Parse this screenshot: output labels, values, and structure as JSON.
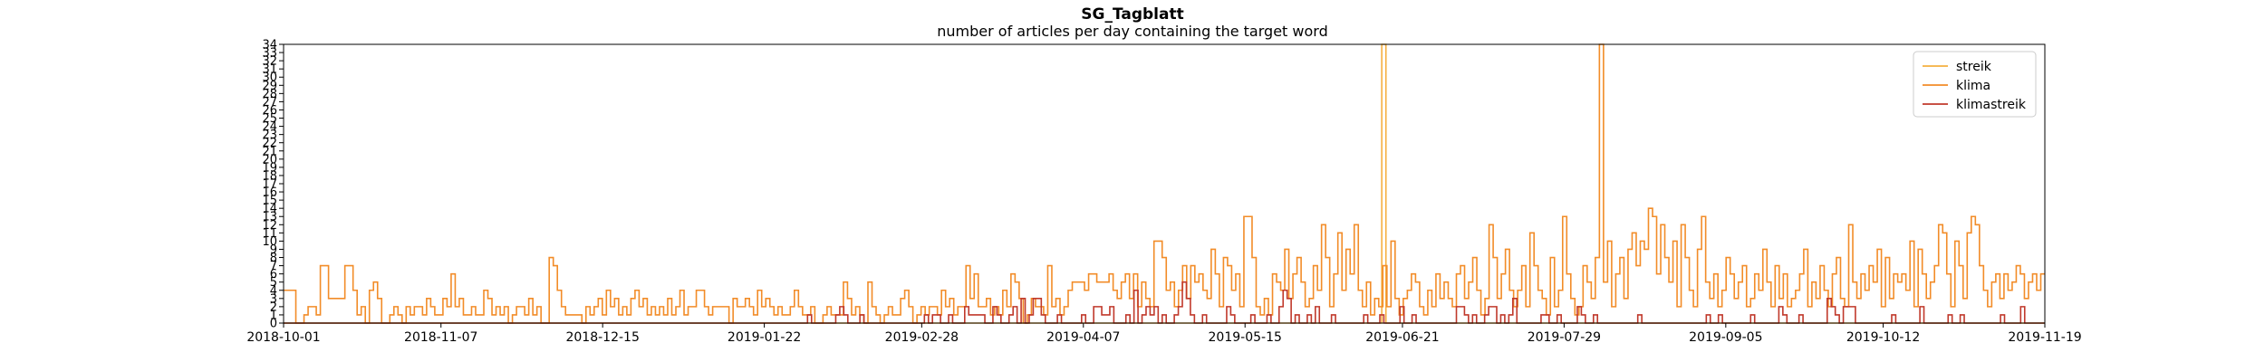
{
  "chart_data": {
    "type": "line",
    "drawstyle": "steps",
    "title": "SG_Tagblatt",
    "subtitle": "number of articles per day containing the target word",
    "xlabel": "",
    "ylabel": "",
    "xlim": [
      "2018-10-01",
      "2019-11-19"
    ],
    "ylim": [
      0,
      34
    ],
    "yticks": [
      0,
      1,
      2,
      3,
      4,
      5,
      6,
      7,
      8,
      9,
      10,
      11,
      12,
      13,
      14,
      15,
      16,
      17,
      18,
      19,
      20,
      21,
      22,
      23,
      24,
      25,
      26,
      27,
      28,
      29,
      30,
      31,
      32,
      33,
      34
    ],
    "xtick_labels": [
      "2018-10-01",
      "2018-11-07",
      "2018-12-15",
      "2019-01-22",
      "2019-02-28",
      "2019-04-07",
      "2019-05-15",
      "2019-06-21",
      "2019-07-29",
      "2019-09-05",
      "2019-10-12",
      "2019-11-19"
    ],
    "grid": false,
    "legend_position": "top-right",
    "series": [
      {
        "name": "streik",
        "color": "#f5b041",
        "values": [
          0,
          0,
          0,
          0,
          0,
          0,
          0,
          0,
          0,
          0,
          0,
          0,
          0,
          0,
          0,
          0,
          0,
          0,
          0,
          0,
          0,
          0,
          0,
          0,
          0,
          0,
          0,
          0,
          0,
          0,
          0,
          0,
          0,
          0,
          0,
          0,
          0,
          0,
          0,
          0,
          0,
          0,
          0,
          0,
          0,
          0,
          0,
          0,
          0,
          0,
          0,
          0,
          0,
          0,
          0,
          0,
          0,
          0,
          0,
          0,
          0,
          0,
          0,
          0,
          0,
          0,
          0,
          0,
          0,
          0,
          0,
          0,
          0,
          0,
          0,
          0,
          0,
          0,
          0,
          0,
          0,
          0,
          0,
          0,
          0,
          0,
          0,
          0,
          0,
          0,
          0,
          0,
          0,
          0,
          0,
          0,
          0,
          0,
          0,
          0,
          0,
          0,
          0,
          0,
          0,
          0,
          0,
          0,
          0,
          0,
          0,
          0,
          0,
          0,
          0,
          0,
          0,
          0,
          0,
          0,
          0,
          0,
          0,
          0,
          0,
          0,
          0,
          0,
          0,
          0,
          0,
          0,
          0,
          0,
          0,
          0,
          0,
          0,
          0,
          0,
          0,
          0,
          0,
          0,
          0,
          0,
          0,
          0,
          0,
          0,
          0,
          0,
          0,
          0,
          0,
          0,
          0,
          0,
          0,
          0,
          0,
          0,
          0,
          0,
          0,
          0,
          0,
          0,
          0,
          0,
          0,
          0,
          0,
          0,
          0,
          0,
          0,
          0,
          0,
          0,
          0,
          0,
          0,
          0,
          0,
          0,
          0,
          0,
          0,
          0,
          0,
          0,
          0,
          0,
          0,
          0,
          0,
          0,
          0,
          0,
          0,
          0,
          0,
          0,
          0,
          0,
          0,
          0,
          0,
          0,
          0,
          0,
          0,
          0,
          0,
          0,
          0,
          0,
          0,
          0,
          0,
          0,
          0,
          0,
          0,
          0,
          0,
          0,
          0,
          0,
          0,
          0,
          0,
          0,
          0,
          0,
          0,
          0,
          0,
          0,
          0,
          0,
          0,
          0,
          0,
          0,
          0,
          0,
          0,
          0,
          0,
          0,
          0,
          0,
          0,
          0,
          0,
          0,
          0,
          0,
          0,
          0,
          0,
          0,
          0,
          34,
          0,
          0,
          0,
          0,
          0,
          0,
          0,
          0,
          0,
          0,
          0,
          0,
          0,
          0,
          0,
          0,
          0,
          0,
          0,
          0,
          0,
          0,
          0,
          0,
          0,
          0,
          0,
          0,
          0,
          0,
          0,
          0,
          0,
          0,
          0,
          0,
          0,
          0,
          0,
          0,
          0,
          0,
          0,
          0,
          0,
          0,
          0,
          0,
          0,
          0,
          0,
          0,
          0,
          0,
          0,
          0,
          0,
          0,
          0,
          0,
          0,
          0,
          0,
          0,
          0,
          0,
          0,
          0,
          0,
          0,
          0,
          0,
          0,
          0,
          0,
          0,
          0,
          0,
          0,
          0,
          0,
          0,
          0,
          0,
          0,
          0,
          0,
          0,
          0,
          0,
          0,
          0,
          0,
          0,
          0,
          0,
          0,
          0,
          0,
          0,
          0,
          0,
          0,
          0,
          0,
          0,
          0,
          0,
          0,
          0,
          0,
          0,
          0,
          0,
          0,
          0,
          0,
          0,
          0,
          0,
          0,
          0,
          0,
          0,
          0,
          0,
          0,
          0,
          0,
          0,
          0,
          0,
          0,
          0,
          0,
          0,
          0,
          0,
          0,
          0,
          0,
          0,
          0,
          0,
          0,
          0,
          0,
          0,
          0,
          0,
          0,
          0,
          0,
          0,
          0,
          0,
          0,
          0,
          0
        ]
      },
      {
        "name": "klima",
        "color": "#f28c28",
        "values": [
          4,
          4,
          4,
          0,
          0,
          1,
          2,
          2,
          1,
          7,
          7,
          3,
          3,
          3,
          3,
          7,
          7,
          4,
          1,
          2,
          0,
          4,
          5,
          3,
          0,
          0,
          1,
          2,
          1,
          0,
          2,
          1,
          2,
          2,
          1,
          3,
          2,
          1,
          1,
          3,
          2,
          6,
          2,
          3,
          1,
          1,
          2,
          1,
          1,
          4,
          3,
          1,
          2,
          1,
          2,
          0,
          1,
          2,
          2,
          1,
          3,
          1,
          2,
          0,
          0,
          8,
          7,
          4,
          2,
          1,
          1,
          1,
          1,
          0,
          2,
          1,
          2,
          3,
          1,
          4,
          2,
          3,
          1,
          2,
          1,
          3,
          4,
          2,
          3,
          1,
          2,
          1,
          2,
          1,
          3,
          1,
          2,
          4,
          1,
          2,
          2,
          4,
          4,
          2,
          1,
          2,
          2,
          2,
          2,
          0,
          3,
          2,
          2,
          3,
          2,
          1,
          4,
          2,
          3,
          2,
          1,
          2,
          1,
          1,
          2,
          4,
          2,
          1,
          1,
          2,
          0,
          0,
          1,
          2,
          1,
          1,
          1,
          5,
          3,
          1,
          2,
          1,
          0,
          5,
          2,
          1,
          0,
          1,
          2,
          1,
          1,
          3,
          4,
          2,
          0,
          1,
          2,
          1,
          2,
          2,
          1,
          4,
          2,
          3,
          1,
          2,
          2,
          7,
          3,
          6,
          2,
          2,
          3,
          1,
          2,
          1,
          4,
          2,
          6,
          5,
          3,
          0,
          1,
          3,
          2,
          2,
          1,
          7,
          2,
          3,
          1,
          2,
          4,
          5,
          5,
          5,
          4,
          6,
          6,
          5,
          5,
          5,
          6,
          4,
          3,
          5,
          6,
          3,
          6,
          2,
          5,
          3,
          2,
          10,
          10,
          8,
          4,
          5,
          2,
          4,
          7,
          3,
          7,
          5,
          6,
          4,
          3,
          9,
          6,
          2,
          8,
          7,
          4,
          6,
          2,
          13,
          13,
          8,
          2,
          1,
          3,
          1,
          6,
          5,
          4,
          9,
          3,
          6,
          8,
          5,
          2,
          3,
          7,
          4,
          12,
          8,
          2,
          6,
          11,
          4,
          9,
          6,
          12,
          4,
          2,
          5,
          1,
          3,
          2,
          7,
          2,
          10,
          3,
          1,
          3,
          4,
          6,
          5,
          2,
          1,
          4,
          2,
          6,
          3,
          5,
          3,
          2,
          6,
          7,
          3,
          5,
          8,
          4,
          1,
          3,
          12,
          8,
          3,
          6,
          9,
          4,
          2,
          4,
          7,
          2,
          11,
          7,
          4,
          3,
          1,
          8,
          2,
          4,
          13,
          6,
          3,
          1,
          2,
          7,
          5,
          3,
          8,
          34,
          5,
          10,
          2,
          6,
          8,
          3,
          9,
          11,
          7,
          10,
          9,
          14,
          13,
          6,
          12,
          8,
          5,
          10,
          2,
          12,
          8,
          4,
          2,
          9,
          13,
          5,
          3,
          6,
          2,
          4,
          8,
          6,
          3,
          5,
          7,
          2,
          3,
          6,
          4,
          9,
          5,
          2,
          7,
          3,
          6,
          2,
          3,
          4,
          6,
          9,
          2,
          5,
          3,
          7,
          4,
          2,
          6,
          8,
          3,
          2,
          12,
          5,
          3,
          6,
          4,
          7,
          5,
          9,
          2,
          8,
          3,
          6,
          5,
          6,
          4,
          10,
          2,
          9,
          6,
          3,
          5,
          7,
          12,
          11,
          6,
          2,
          10,
          7,
          3,
          11,
          13,
          12,
          7,
          4,
          2,
          5,
          6,
          3,
          6,
          4,
          5,
          7,
          6,
          3,
          5,
          6,
          4,
          6
        ]
      },
      {
        "name": "klimastreik",
        "color": "#c0392b",
        "values": [
          0,
          0,
          0,
          0,
          0,
          0,
          0,
          0,
          0,
          0,
          0,
          0,
          0,
          0,
          0,
          0,
          0,
          0,
          0,
          0,
          0,
          0,
          0,
          0,
          0,
          0,
          0,
          0,
          0,
          0,
          0,
          0,
          0,
          0,
          0,
          0,
          0,
          0,
          0,
          0,
          0,
          0,
          0,
          0,
          0,
          0,
          0,
          0,
          0,
          0,
          0,
          0,
          0,
          0,
          0,
          0,
          0,
          0,
          0,
          0,
          0,
          0,
          0,
          0,
          0,
          0,
          0,
          0,
          0,
          0,
          0,
          0,
          0,
          0,
          0,
          0,
          0,
          0,
          0,
          0,
          0,
          0,
          0,
          0,
          0,
          0,
          0,
          0,
          0,
          0,
          0,
          0,
          0,
          0,
          0,
          0,
          0,
          0,
          0,
          0,
          0,
          0,
          0,
          0,
          0,
          0,
          0,
          0,
          0,
          0,
          0,
          0,
          0,
          0,
          0,
          0,
          0,
          0,
          0,
          0,
          0,
          0,
          0,
          0,
          0,
          0,
          0,
          0,
          0,
          0,
          1,
          0,
          0,
          0,
          0,
          0,
          0,
          1,
          2,
          1,
          0,
          0,
          0,
          1,
          0,
          0,
          0,
          0,
          0,
          0,
          0,
          0,
          0,
          0,
          0,
          0,
          0,
          0,
          0,
          1,
          0,
          1,
          1,
          0,
          0,
          1,
          0,
          0,
          0,
          2,
          1,
          1,
          1,
          1,
          0,
          0,
          2,
          1,
          0,
          0,
          1,
          2,
          0,
          3,
          0,
          1,
          3,
          3,
          1,
          0,
          0,
          0,
          1,
          0,
          0,
          0,
          0,
          0,
          1,
          0,
          0,
          2,
          2,
          1,
          1,
          2,
          0,
          0,
          0,
          1,
          0,
          4,
          0,
          1,
          2,
          1,
          2,
          0,
          1,
          0,
          0,
          1,
          2,
          5,
          3,
          1,
          0,
          0,
          1,
          0,
          0,
          0,
          0,
          0,
          2,
          1,
          0,
          0,
          0,
          0,
          1,
          0,
          0,
          0,
          1,
          0,
          0,
          2,
          4,
          3,
          0,
          1,
          0,
          0,
          1,
          0,
          2,
          0,
          0,
          0,
          1,
          0,
          0,
          0,
          0,
          0,
          0,
          0,
          1,
          0,
          0,
          0,
          1,
          0,
          0,
          0,
          0,
          2,
          0,
          0,
          1,
          0,
          0,
          0,
          0,
          0,
          0,
          0,
          0,
          0,
          0,
          2,
          2,
          1,
          0,
          1,
          0,
          0,
          1,
          2,
          2,
          0,
          1,
          0,
          1,
          3,
          0,
          0,
          0,
          0,
          0,
          0,
          1,
          1,
          0,
          0,
          1,
          0,
          0,
          0,
          0,
          2,
          1,
          0,
          0,
          1,
          0,
          0,
          0,
          0,
          0,
          0,
          0,
          0,
          0,
          0,
          1,
          0,
          0,
          0,
          0,
          0,
          0,
          0,
          0,
          0,
          0,
          0,
          0,
          0,
          0,
          0,
          0,
          1,
          0,
          0,
          1,
          0,
          0,
          0,
          0,
          0,
          0,
          0,
          1,
          0,
          0,
          0,
          0,
          0,
          0,
          2,
          1,
          0,
          0,
          0,
          1,
          0,
          0,
          0,
          0,
          0,
          0,
          3,
          2,
          1,
          0,
          2,
          2,
          2,
          0,
          0,
          0,
          0,
          0,
          0,
          0,
          0,
          0,
          1,
          0,
          0,
          0,
          0,
          0,
          0,
          2,
          0,
          0,
          0,
          0,
          0,
          0,
          1,
          0,
          0,
          1,
          0,
          0,
          0,
          0,
          0,
          0,
          0,
          0,
          0,
          1,
          0,
          0,
          0,
          0,
          2,
          0,
          0,
          0,
          0,
          0
        ]
      }
    ]
  }
}
